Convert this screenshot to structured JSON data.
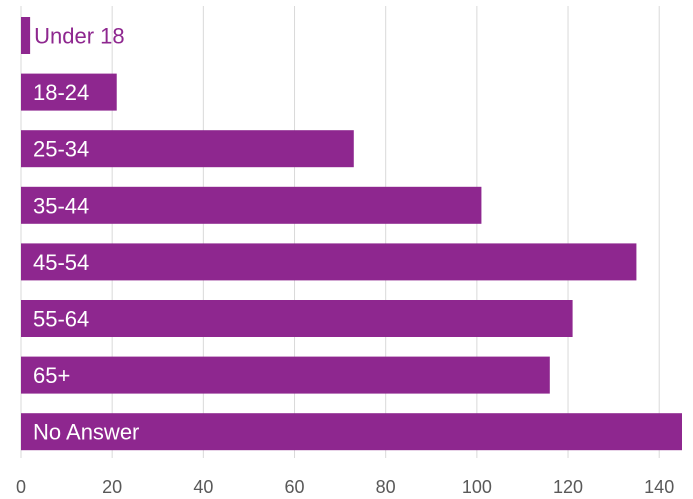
{
  "chart_data": {
    "type": "bar",
    "orientation": "horizontal",
    "categories": [
      "Under 18",
      "18-24",
      "25-34",
      "35-44",
      "45-54",
      "55-64",
      "65+",
      "No Answer"
    ],
    "values": [
      2,
      21,
      73,
      101,
      135,
      121,
      116,
      145
    ],
    "xlim": [
      0,
      145
    ],
    "x_ticks": [
      "0",
      "20",
      "40",
      "60",
      "80",
      "100",
      "120",
      "140"
    ],
    "title": "",
    "xlabel": "",
    "ylabel": "",
    "grid": "vertical",
    "legend": "none",
    "colors": {
      "bar": "#8e278f",
      "label_inside": "#ffffff",
      "label_outside": "#8e278f",
      "grid": "#d9d9d9",
      "tick": "#595959"
    }
  }
}
